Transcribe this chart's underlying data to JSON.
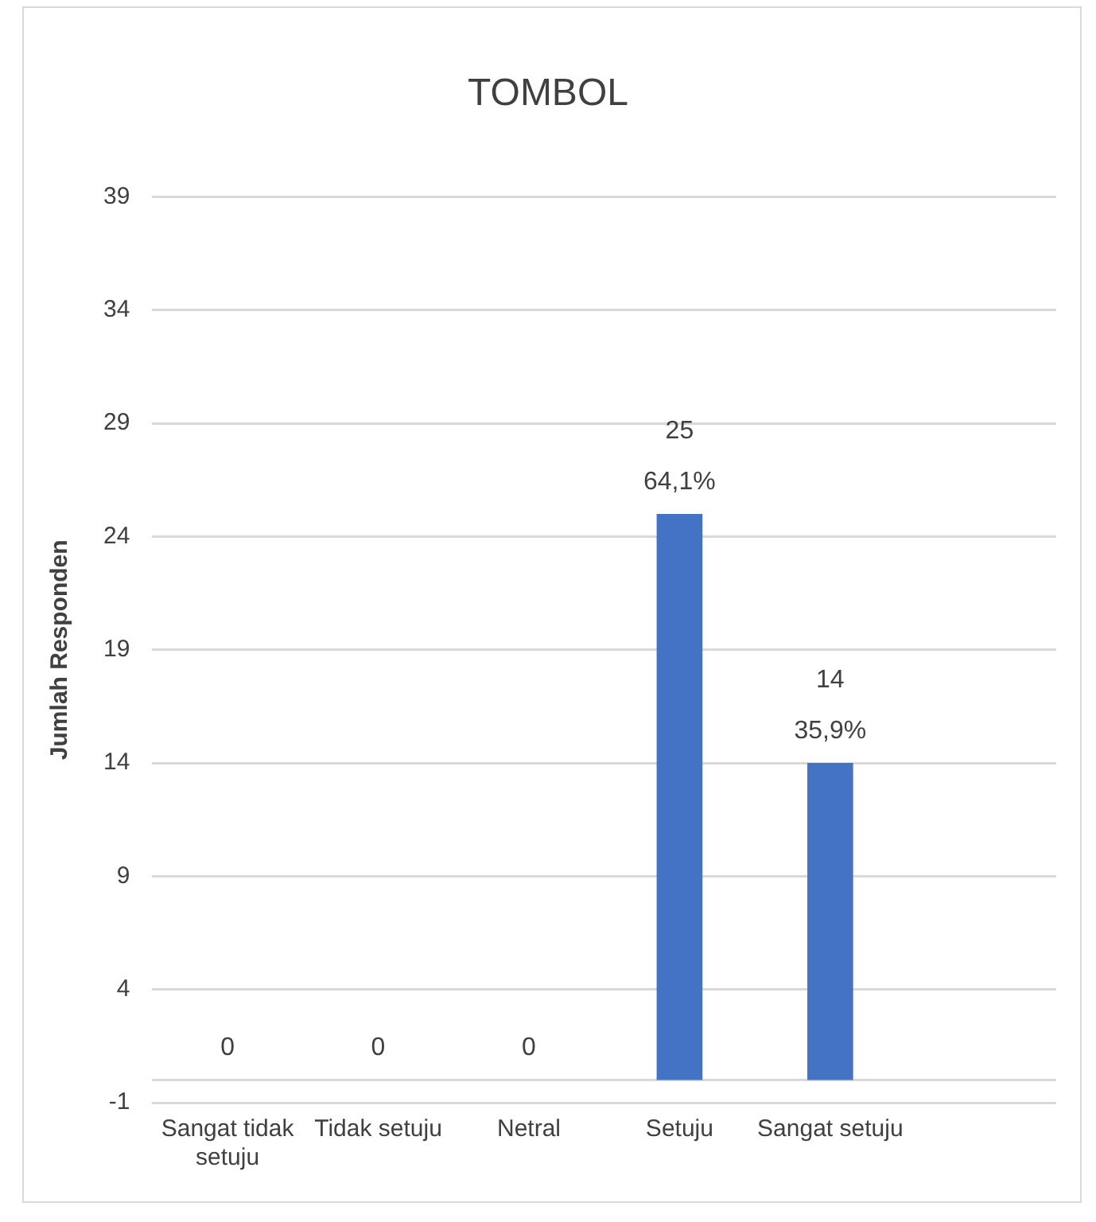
{
  "chart_data": {
    "type": "bar",
    "title": "TOMBOL",
    "ylabel": "Jumlah Responden",
    "categories": [
      "Sangat tidak setuju",
      "Tidak setuju",
      "Netral",
      "Setuju",
      "Sangat setuju",
      null
    ],
    "values": [
      0,
      0,
      0,
      25,
      14,
      null
    ],
    "value_labels": [
      "0",
      "0",
      "0",
      "25\n64,1%",
      "14\n35,9%",
      null
    ],
    "color": "#4472c4",
    "ylim": [
      -1,
      39
    ],
    "yticks": [
      -1,
      4,
      9,
      14,
      19,
      24,
      29,
      34,
      39
    ],
    "ref_lines": [
      {
        "axis": "y",
        "value": 0,
        "color": "#d9d9d9"
      }
    ],
    "grid": "y",
    "legend": false
  }
}
